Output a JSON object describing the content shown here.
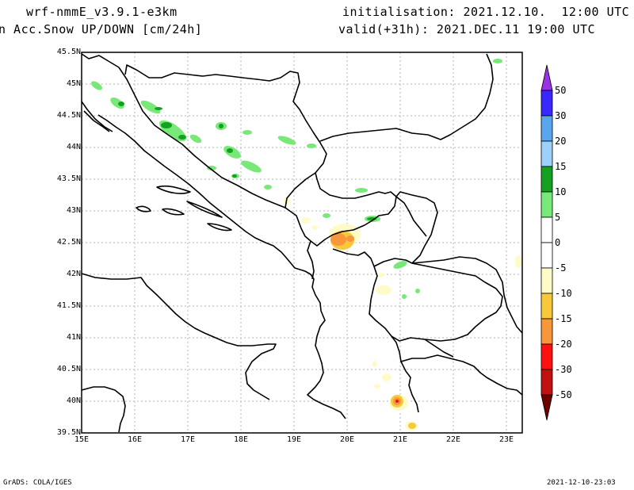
{
  "header": {
    "model": "wrf-nmmE_v3.9.1-e3km",
    "init": "initialisation: 2021.12.10.  12:00 UTC",
    "variable": "n Acc.Snow UP/DOWN [cm/24h]",
    "valid": "valid(+31h): 2021.DEC.11 19:00 UTC"
  },
  "map": {
    "lat_labels": [
      "45.5N",
      "45N",
      "44.5N",
      "44N",
      "43.5N",
      "43N",
      "42.5N",
      "42N",
      "41.5N",
      "41N",
      "40.5N",
      "40N",
      "39.5N"
    ],
    "lon_labels": [
      "15E",
      "16E",
      "17E",
      "18E",
      "19E",
      "20E",
      "21E",
      "22E",
      "23E"
    ]
  },
  "colorbar": {
    "labels": [
      "50",
      "30",
      "20",
      "15",
      "10",
      "5",
      "0",
      "-5",
      "-10",
      "-15",
      "-20",
      "-30",
      "-50"
    ],
    "colors": [
      "#3a26ff",
      "#5aa6ee",
      "#9ed1fa",
      "#14a020",
      "#78e878",
      "#ffffff",
      "#ffffff",
      "#fffbc8",
      "#f8c83c",
      "#f8963c",
      "#ff1010",
      "#c01010",
      "#8c0000"
    ],
    "top_arrow_color": "#9932e0",
    "bottom_arrow_color": "#6e0000"
  },
  "footer": {
    "left": "GrADS: COLA/IGES",
    "right": "2021-12-10-23:03"
  }
}
